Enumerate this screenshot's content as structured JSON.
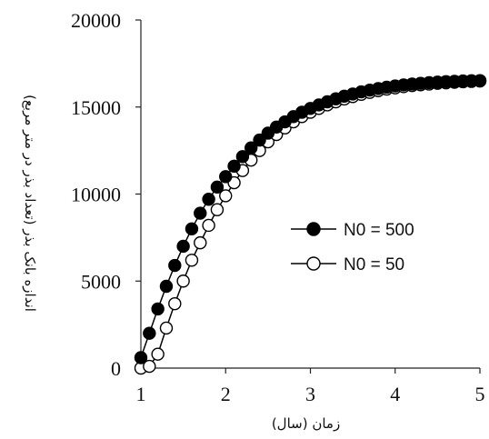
{
  "chart_data": {
    "type": "line",
    "ylabel": "اندازه بانک بذر (تعداد بذر در متر مربع)",
    "xlabel": "زمان (سال)",
    "xlim": [
      1,
      5
    ],
    "ylim": [
      0,
      20000
    ],
    "x_ticks": [
      "1",
      "2",
      "3",
      "4",
      "5"
    ],
    "y_ticks": [
      "0",
      "5000",
      "10000",
      "15000",
      "20000"
    ],
    "grid": false,
    "legend_position": "center-right",
    "series": [
      {
        "name": "N0 = 500",
        "marker": "filled-circle",
        "color": "#000000",
        "x": [
          1.0,
          1.1,
          1.2,
          1.3,
          1.4,
          1.5,
          1.6,
          1.7,
          1.8,
          1.9,
          2.0,
          2.1,
          2.2,
          2.3,
          2.4,
          2.5,
          2.6,
          2.7,
          2.8,
          2.9,
          3.0,
          3.1,
          3.2,
          3.3,
          3.4,
          3.5,
          3.6,
          3.7,
          3.8,
          3.9,
          4.0,
          4.1,
          4.2,
          4.3,
          4.4,
          4.5,
          4.6,
          4.7,
          4.8,
          4.9,
          5.0
        ],
        "y": [
          600,
          2000,
          3400,
          4700,
          5900,
          7000,
          8000,
          8900,
          9700,
          10400,
          11000,
          11600,
          12150,
          12650,
          13100,
          13500,
          13850,
          14150,
          14450,
          14700,
          14920,
          15120,
          15300,
          15470,
          15620,
          15750,
          15870,
          15970,
          16060,
          16140,
          16210,
          16270,
          16320,
          16360,
          16400,
          16430,
          16460,
          16480,
          16500,
          16510,
          16520
        ]
      },
      {
        "name": "N0 = 50",
        "marker": "open-circle",
        "color": "#000000",
        "x": [
          1.0,
          1.1,
          1.2,
          1.3,
          1.4,
          1.5,
          1.6,
          1.7,
          1.8,
          1.9,
          2.0,
          2.1,
          2.2,
          2.3,
          2.4,
          2.5,
          2.6,
          2.7,
          2.8,
          2.9,
          3.0,
          3.1,
          3.2,
          3.3,
          3.4,
          3.5,
          3.6,
          3.7,
          3.8,
          3.9,
          4.0,
          4.1,
          4.2,
          4.3,
          4.4,
          4.5,
          4.6,
          4.7,
          4.8,
          4.9,
          5.0
        ],
        "y": [
          0,
          100,
          800,
          2300,
          3700,
          5000,
          6200,
          7200,
          8200,
          9100,
          9900,
          10650,
          11350,
          11950,
          12500,
          13000,
          13420,
          13800,
          14150,
          14450,
          14700,
          14920,
          15120,
          15300,
          15460,
          15600,
          15730,
          15840,
          15940,
          16030,
          16100,
          16170,
          16230,
          16280,
          16320,
          16360,
          16390,
          16420,
          16450,
          16470,
          16490
        ]
      }
    ]
  }
}
